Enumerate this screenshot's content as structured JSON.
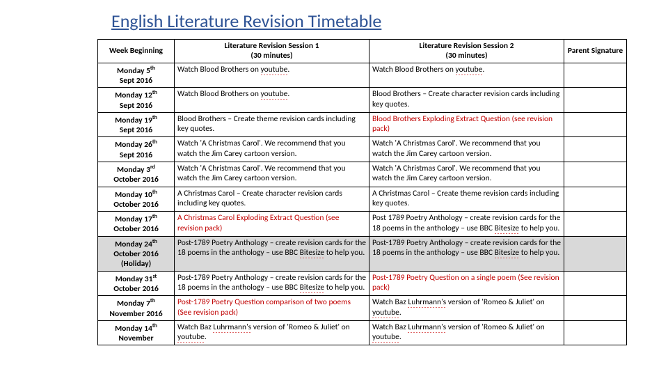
{
  "title": "English Literature Revision Timetable",
  "headers": {
    "week": "Week Beginning",
    "s1a": "Literature Revision Session 1",
    "s1b": "(30 minutes)",
    "s2a": "Literature Revision Session 2",
    "s2b": "(30 minutes)",
    "sig": "Parent Signature"
  },
  "rows": [
    {
      "week_a": "Monday 5",
      "ord": "th",
      "week_b": "Sept 2016",
      "s1": [
        {
          "t": "Watch Blood Brothers on "
        },
        {
          "t": "youtube",
          "sq": true
        },
        {
          "t": "."
        }
      ],
      "s2": [
        {
          "t": "Watch Blood Brothers on "
        },
        {
          "t": "youtube",
          "sq": true
        },
        {
          "t": "."
        }
      ]
    },
    {
      "week_a": "Monday 12",
      "ord": "th",
      "week_b": "Sept 2016",
      "s1": [
        {
          "t": "Watch Blood Brothers on "
        },
        {
          "t": "youtube",
          "sq": true
        },
        {
          "t": "."
        }
      ],
      "s2": [
        {
          "t": "Blood Brothers – Create character revision cards including key quotes."
        }
      ]
    },
    {
      "week_a": "Monday 19",
      "ord": "th",
      "week_b": "Sept 2016",
      "s1": [
        {
          "t": "Blood Brothers – Create theme revision cards including key quotes."
        }
      ],
      "s2": [
        {
          "t": "Blood Brothers Exploding Extract Question (see revision pack)",
          "red": true
        }
      ]
    },
    {
      "week_a": "Monday 26",
      "ord": "th",
      "week_b": "Sept 2016",
      "s1": [
        {
          "t": "Watch 'A Christmas Carol'. We recommend that you watch the Jim Carey cartoon version."
        }
      ],
      "s2": [
        {
          "t": "Watch 'A Christmas Carol'. We recommend that you watch the Jim Carey cartoon version."
        }
      ]
    },
    {
      "week_a": "Monday 3",
      "ord": "rd",
      "week_b": "October 2016",
      "s1": [
        {
          "t": "Watch 'A Christmas Carol'. We recommend that you watch the Jim Carey cartoon version."
        }
      ],
      "s2": [
        {
          "t": "Watch 'A Christmas Carol'. We recommend that you watch the Jim Carey cartoon version."
        }
      ]
    },
    {
      "week_a": "Monday 10",
      "ord": "th",
      "week_b": "October 2016",
      "s1": [
        {
          "t": "A Christmas Carol – Create character revision cards including key quotes."
        }
      ],
      "s2": [
        {
          "t": "A Christmas Carol – Create theme revision cards including key quotes."
        }
      ]
    },
    {
      "week_a": "Monday 17",
      "ord": "th",
      "week_b": "October 2016",
      "s1": [
        {
          "t": "A Christmas Carol Exploding Extract Question (see revision pack)",
          "red": true
        }
      ],
      "s2": [
        {
          "t": "Post 1789 Poetry Anthology – create revision cards for the 18 poems in the anthology – use BBC "
        },
        {
          "t": "Bitesize",
          "sq": true
        },
        {
          "t": " to help you."
        }
      ]
    },
    {
      "shaded": true,
      "week_a": "Monday 24",
      "ord": "th",
      "week_b": "October 2016 (Holiday)",
      "s1": [
        {
          "t": "Post-1789 Poetry Anthology – create revision cards for the 18 poems in the anthology – use BBC "
        },
        {
          "t": "Bitesize",
          "sq": true
        },
        {
          "t": " to help you."
        }
      ],
      "s2": [
        {
          "t": "Post-1789 Poetry Anthology – create revision cards for the 18 poems in the anthology – use BBC "
        },
        {
          "t": "Bitesize",
          "sq": true
        },
        {
          "t": " to help you."
        }
      ]
    },
    {
      "week_a": "Monday 31",
      "ord": "st",
      "week_b": "October 2016",
      "s1": [
        {
          "t": "Post-1789 Poetry Anthology – create revision cards for the 18 poems in the anthology – use BBC "
        },
        {
          "t": "Bitesize",
          "sq": true
        },
        {
          "t": " to help you."
        }
      ],
      "s2": [
        {
          "t": "Post-1789 Poetry Question on a single poem (See revision pack)",
          "red": true
        }
      ]
    },
    {
      "week_a": "Monday 7",
      "ord": "th",
      "week_b": "November 2016",
      "s1": [
        {
          "t": "Post-1789 Poetry Question comparison of two poems (See revision pack)",
          "red": true
        }
      ],
      "s2": [
        {
          "t": "Watch Baz "
        },
        {
          "t": "Luhrmann's",
          "sq": true
        },
        {
          "t": " version of 'Romeo & Juliet' on "
        },
        {
          "t": "youtube",
          "sq": true
        },
        {
          "t": "."
        }
      ]
    },
    {
      "week_a": "Monday 14",
      "ord": "th",
      "week_b": "November",
      "s1": [
        {
          "t": "Watch Baz "
        },
        {
          "t": "Luhrmann's",
          "sq": true
        },
        {
          "t": " version of 'Romeo & Juliet' on "
        },
        {
          "t": "youtube",
          "sq": true
        },
        {
          "t": "."
        }
      ],
      "s2": [
        {
          "t": "Watch Baz "
        },
        {
          "t": "Luhrmann's",
          "sq": true
        },
        {
          "t": " version of 'Romeo & Juliet' on "
        },
        {
          "t": "youtube",
          "sq": true
        },
        {
          "t": "."
        }
      ]
    }
  ]
}
